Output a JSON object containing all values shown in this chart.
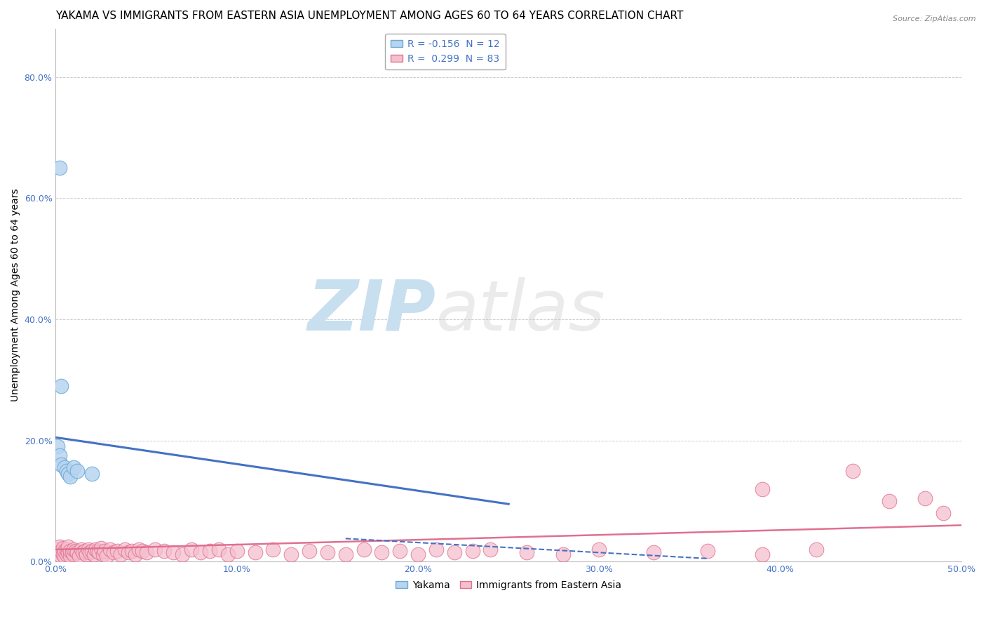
{
  "title": "YAKAMA VS IMMIGRANTS FROM EASTERN ASIA UNEMPLOYMENT AMONG AGES 60 TO 64 YEARS CORRELATION CHART",
  "source": "Source: ZipAtlas.com",
  "ylabel": "Unemployment Among Ages 60 to 64 years",
  "xlim": [
    0.0,
    0.5
  ],
  "ylim": [
    0.0,
    0.88
  ],
  "xticks": [
    0.0,
    0.1,
    0.2,
    0.3,
    0.4,
    0.5
  ],
  "xtick_labels": [
    "0.0%",
    "10.0%",
    "20.0%",
    "30.0%",
    "40.0%",
    "50.0%"
  ],
  "yticks": [
    0.0,
    0.2,
    0.4,
    0.6,
    0.8
  ],
  "ytick_labels": [
    "0.0%",
    "20.0%",
    "40.0%",
    "60.0%",
    "80.0%"
  ],
  "yakama_color": "#b8d4f0",
  "yakama_edge_color": "#6aaad4",
  "eastern_asia_color": "#f5c0ce",
  "eastern_asia_edge_color": "#e07090",
  "trend_yakama_color": "#4472c4",
  "trend_eastern_asia_color": "#e07090",
  "R_yakama": -0.156,
  "N_yakama": 12,
  "R_eastern_asia": 0.299,
  "N_eastern_asia": 83,
  "yakama_x": [
    0.001,
    0.002,
    0.003,
    0.005,
    0.006,
    0.007,
    0.008,
    0.01,
    0.012,
    0.02,
    0.003,
    0.002
  ],
  "yakama_y": [
    0.19,
    0.175,
    0.16,
    0.155,
    0.15,
    0.145,
    0.14,
    0.155,
    0.15,
    0.145,
    0.29,
    0.65
  ],
  "trend_yakama_x0": 0.0,
  "trend_yakama_y0": 0.205,
  "trend_yakama_x1": 0.25,
  "trend_yakama_y1": 0.095,
  "trend_ea_x0": 0.0,
  "trend_ea_y0": 0.02,
  "trend_ea_x1": 0.5,
  "trend_ea_y1": 0.06,
  "trend_ea_dashed_x0": 0.16,
  "trend_ea_dashed_y0": 0.038,
  "trend_ea_dashed_x1": 0.36,
  "trend_ea_dashed_y1": 0.005,
  "eastern_asia_x": [
    0.001,
    0.002,
    0.002,
    0.003,
    0.003,
    0.004,
    0.004,
    0.005,
    0.005,
    0.006,
    0.006,
    0.007,
    0.007,
    0.008,
    0.008,
    0.009,
    0.01,
    0.01,
    0.011,
    0.012,
    0.013,
    0.014,
    0.015,
    0.016,
    0.017,
    0.018,
    0.019,
    0.02,
    0.021,
    0.022,
    0.023,
    0.024,
    0.025,
    0.026,
    0.027,
    0.028,
    0.03,
    0.032,
    0.034,
    0.036,
    0.038,
    0.04,
    0.042,
    0.044,
    0.046,
    0.048,
    0.05,
    0.055,
    0.06,
    0.065,
    0.07,
    0.075,
    0.08,
    0.085,
    0.09,
    0.095,
    0.1,
    0.11,
    0.12,
    0.13,
    0.14,
    0.15,
    0.16,
    0.17,
    0.18,
    0.19,
    0.2,
    0.21,
    0.22,
    0.23,
    0.24,
    0.26,
    0.28,
    0.3,
    0.33,
    0.36,
    0.39,
    0.42,
    0.44,
    0.46,
    0.39,
    0.48,
    0.49
  ],
  "eastern_asia_y": [
    0.02,
    0.015,
    0.025,
    0.01,
    0.018,
    0.012,
    0.022,
    0.008,
    0.018,
    0.012,
    0.02,
    0.015,
    0.025,
    0.01,
    0.018,
    0.015,
    0.012,
    0.02,
    0.018,
    0.015,
    0.01,
    0.02,
    0.015,
    0.018,
    0.012,
    0.02,
    0.015,
    0.018,
    0.012,
    0.02,
    0.018,
    0.015,
    0.022,
    0.012,
    0.018,
    0.01,
    0.02,
    0.015,
    0.018,
    0.012,
    0.02,
    0.015,
    0.018,
    0.012,
    0.02,
    0.018,
    0.015,
    0.02,
    0.018,
    0.015,
    0.012,
    0.02,
    0.015,
    0.018,
    0.02,
    0.012,
    0.018,
    0.015,
    0.02,
    0.012,
    0.018,
    0.015,
    0.012,
    0.02,
    0.015,
    0.018,
    0.012,
    0.02,
    0.015,
    0.018,
    0.02,
    0.015,
    0.012,
    0.02,
    0.015,
    0.018,
    0.012,
    0.02,
    0.15,
    0.1,
    0.12,
    0.105,
    0.08
  ],
  "background_color": "#ffffff",
  "grid_color": "#cccccc",
  "watermark_zip_color": "#c8dff0",
  "watermark_atlas_color": "#c8c8c8",
  "title_fontsize": 11,
  "axis_label_fontsize": 10,
  "tick_fontsize": 9,
  "legend_fontsize": 10
}
